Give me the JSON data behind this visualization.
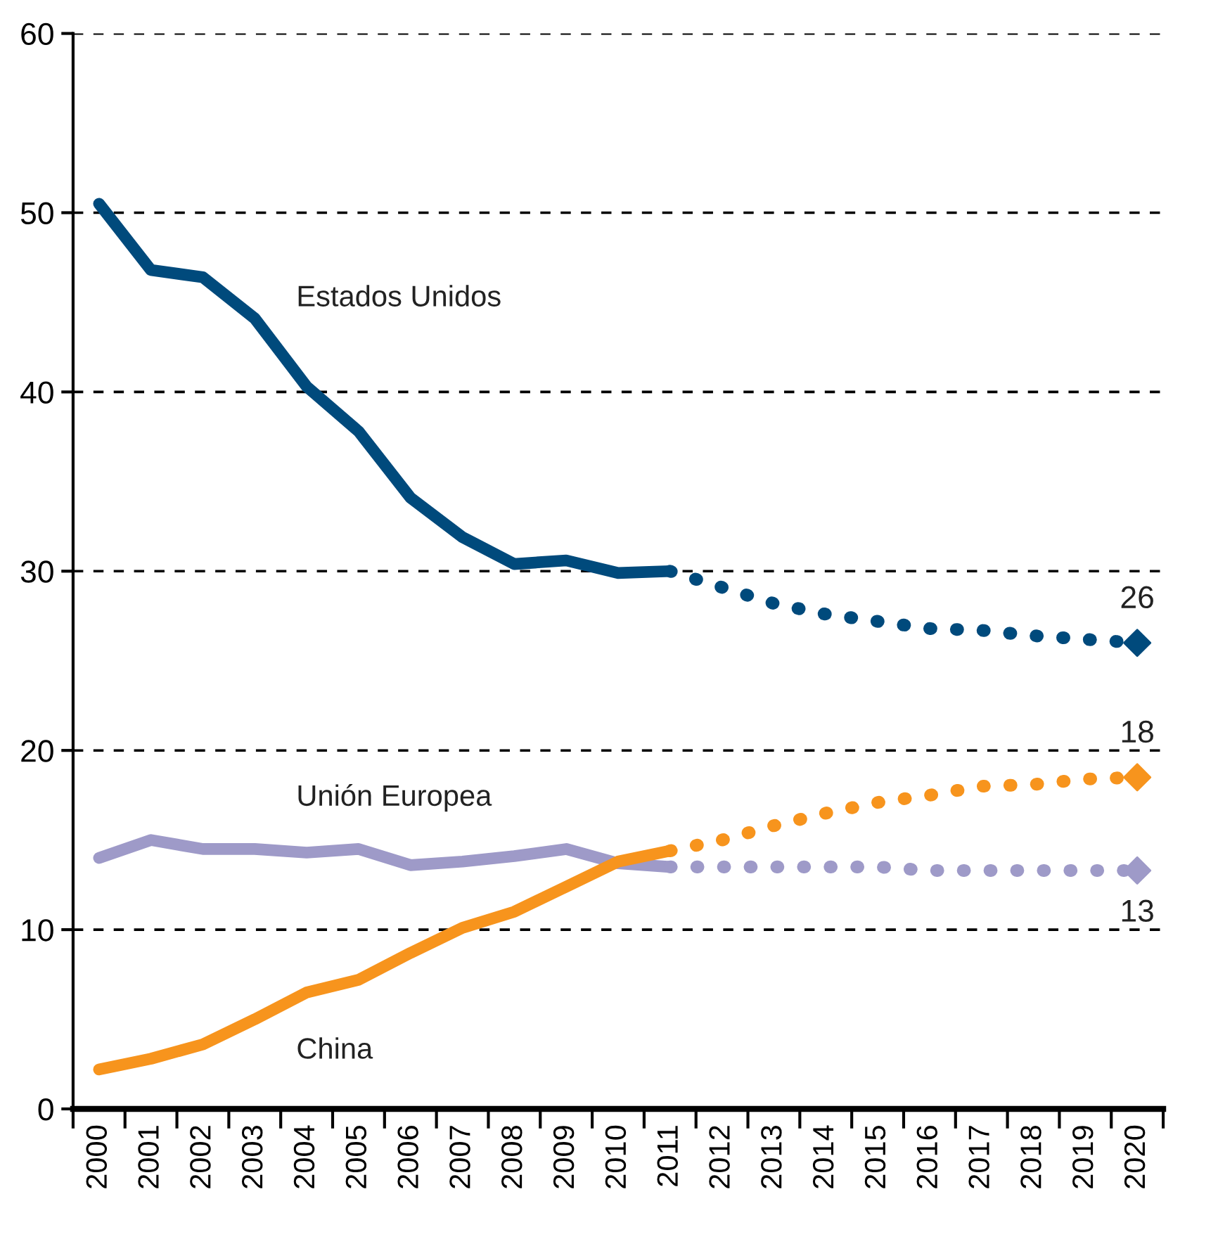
{
  "chart_data": {
    "type": "line",
    "categories": [
      "2000",
      "2001",
      "2002",
      "2003",
      "2004",
      "2005",
      "2006",
      "2007",
      "2008",
      "2009",
      "2010",
      "2011",
      "2012",
      "2013",
      "2014",
      "2015",
      "2016",
      "2017",
      "2018",
      "2019",
      "2020"
    ],
    "ylim": [
      0,
      60
    ],
    "yticks": [
      0,
      10,
      20,
      30,
      40,
      50,
      60
    ],
    "grid": "y",
    "series": [
      {
        "name": "Estados Unidos",
        "color": "#004a7c",
        "line_style": "solid",
        "values": [
          50.5,
          46.8,
          46.4,
          44.1,
          40.3,
          37.8,
          34.1,
          31.9,
          30.4,
          30.6,
          29.9,
          30.0,
          null,
          null,
          null,
          null,
          null,
          null,
          null,
          null,
          null
        ]
      },
      {
        "name": "Unión Europea",
        "color": "#9e9ac8",
        "line_style": "solid",
        "values": [
          14.0,
          15.0,
          14.5,
          14.5,
          14.3,
          14.5,
          13.6,
          13.8,
          14.1,
          14.5,
          13.7,
          13.5,
          null,
          null,
          null,
          null,
          null,
          null,
          null,
          null,
          null
        ]
      },
      {
        "name": "China",
        "color": "#f7941d",
        "line_style": "solid",
        "values": [
          2.2,
          2.8,
          3.6,
          5.0,
          6.5,
          7.2,
          8.7,
          10.1,
          11.0,
          12.4,
          13.8,
          14.4,
          null,
          null,
          null,
          null,
          null,
          null,
          null,
          null,
          null
        ]
      },
      {
        "color": "#004a7c",
        "line_style": "dotted",
        "values": [
          null,
          null,
          null,
          null,
          null,
          null,
          null,
          null,
          null,
          null,
          null,
          30.0,
          29.1,
          28.2,
          27.6,
          27.2,
          26.8,
          26.7,
          26.4,
          26.2,
          26.0
        ]
      },
      {
        "color": "#f7941d",
        "line_style": "dotted",
        "values": [
          null,
          null,
          null,
          null,
          null,
          null,
          null,
          null,
          null,
          null,
          null,
          14.4,
          15.0,
          15.8,
          16.5,
          17.1,
          17.5,
          18.0,
          18.1,
          18.4,
          18.5
        ]
      },
      {
        "color": "#9e9ac8",
        "line_style": "dotted",
        "values": [
          null,
          null,
          null,
          null,
          null,
          null,
          null,
          null,
          null,
          null,
          null,
          13.5,
          13.5,
          13.5,
          13.5,
          13.5,
          13.3,
          13.3,
          13.3,
          13.3,
          13.3
        ]
      },
      {
        "type": "scatter",
        "marker": "diamond",
        "color": "#004a7c",
        "values": [
          null,
          null,
          null,
          null,
          null,
          null,
          null,
          null,
          null,
          null,
          null,
          null,
          null,
          null,
          null,
          null,
          null,
          null,
          null,
          null,
          26.0
        ]
      },
      {
        "type": "scatter",
        "marker": "diamond",
        "color": "#f7941d",
        "values": [
          null,
          null,
          null,
          null,
          null,
          null,
          null,
          null,
          null,
          null,
          null,
          null,
          null,
          null,
          null,
          null,
          null,
          null,
          null,
          null,
          18.5
        ]
      },
      {
        "type": "scatter",
        "marker": "diamond",
        "color": "#9e9ac8",
        "values": [
          null,
          null,
          null,
          null,
          null,
          null,
          null,
          null,
          null,
          null,
          null,
          null,
          null,
          null,
          null,
          null,
          null,
          null,
          null,
          null,
          13.3
        ]
      }
    ],
    "annotations": [
      {
        "text": "26",
        "x": "2020",
        "y": 26.0
      },
      {
        "text": "18",
        "x": "2020",
        "y": 18.5
      },
      {
        "text": "13",
        "x": "2020",
        "y": 13.3
      }
    ]
  }
}
